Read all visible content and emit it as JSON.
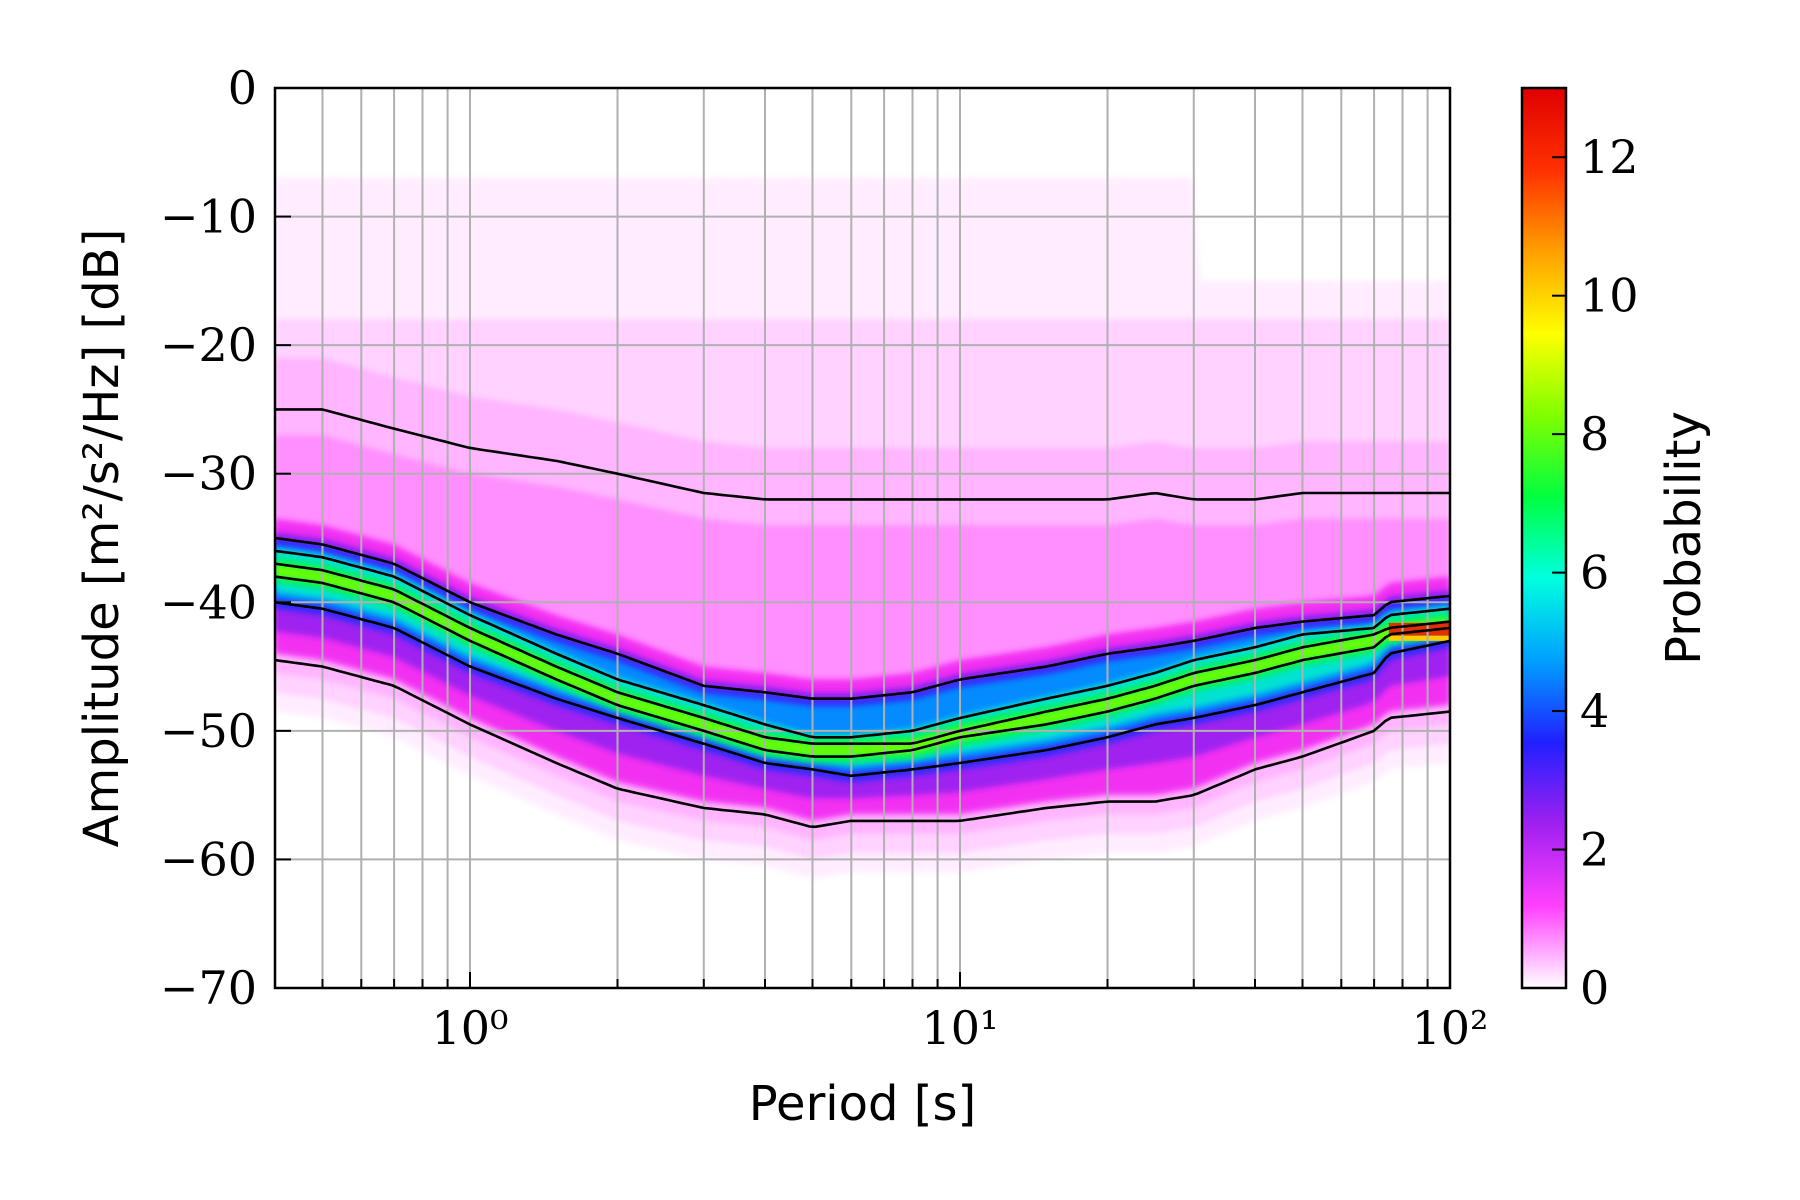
{
  "chart_data": {
    "type": "heatmap",
    "xlabel": "Period [s]",
    "ylabel": "Amplitude [m²/s²/Hz] [dB]",
    "colorbar_label": "Probability",
    "x_scale": "log",
    "xlim": [
      0.4,
      100
    ],
    "ylim": [
      -70,
      0
    ],
    "colorbar_range": [
      0,
      13
    ],
    "x_ticks": [
      {
        "value": 1,
        "label": "10⁰"
      },
      {
        "value": 10,
        "label": "10¹"
      },
      {
        "value": 100,
        "label": "10²"
      }
    ],
    "y_ticks": [
      {
        "value": 0,
        "label": "0"
      },
      {
        "value": -10,
        "label": "−10"
      },
      {
        "value": -20,
        "label": "−20"
      },
      {
        "value": -30,
        "label": "−30"
      },
      {
        "value": -40,
        "label": "−40"
      },
      {
        "value": -50,
        "label": "−50"
      },
      {
        "value": -60,
        "label": "−60"
      },
      {
        "value": -70,
        "label": "−70"
      }
    ],
    "colorbar_ticks": [
      {
        "value": 0,
        "label": "0"
      },
      {
        "value": 2,
        "label": "2"
      },
      {
        "value": 4,
        "label": "4"
      },
      {
        "value": 6,
        "label": "6"
      },
      {
        "value": 8,
        "label": "8"
      },
      {
        "value": 10,
        "label": "10"
      },
      {
        "value": 12,
        "label": "12"
      }
    ],
    "grid": true,
    "colormap": [
      "#ffffff",
      "#ff40ff",
      "#a020f0",
      "#2020ff",
      "#00a0ff",
      "#00ffe0",
      "#00ff40",
      "#80ff00",
      "#ffff00",
      "#ffa000",
      "#ff3000",
      "#e00000"
    ],
    "periods": [
      0.4,
      0.5,
      0.7,
      1,
      1.5,
      2,
      3,
      4,
      5,
      6,
      8,
      10,
      15,
      20,
      25,
      30,
      40,
      50,
      70,
      75,
      100
    ],
    "curves": [
      {
        "values": [
          -25,
          -25,
          -26.5,
          -28,
          -29,
          -30,
          -31.5,
          -32,
          -32,
          -32,
          -32,
          -32,
          -32,
          -32,
          -31.5,
          -32,
          -32,
          -31.5,
          -31.5,
          -31.5,
          -31.5
        ]
      },
      {
        "values": [
          -35,
          -35.5,
          -37,
          -40,
          -42.5,
          -44,
          -46.5,
          -47,
          -47.5,
          -47.5,
          -47,
          -46,
          -45,
          -44,
          -43.5,
          -43,
          -42,
          -41.5,
          -41,
          -40,
          -39.5
        ]
      },
      {
        "values": [
          -36,
          -36.5,
          -38,
          -41,
          -44,
          -46,
          -48,
          -49.5,
          -50.5,
          -50.5,
          -50,
          -49,
          -47.5,
          -46.5,
          -45.5,
          -44.5,
          -43.5,
          -42.5,
          -42,
          -41,
          -40.5
        ]
      },
      {
        "values": [
          -37,
          -37.5,
          -39,
          -42,
          -45,
          -47,
          -49,
          -50.5,
          -51,
          -51,
          -51,
          -50,
          -48.5,
          -47.5,
          -46.5,
          -45.5,
          -44.5,
          -43.5,
          -42.5,
          -42,
          -41.5
        ]
      },
      {
        "values": [
          -38,
          -38.5,
          -40,
          -43,
          -46,
          -48,
          -50,
          -51.5,
          -52,
          -52,
          -51.5,
          -50.5,
          -49.5,
          -48.5,
          -47.5,
          -46.5,
          -45.5,
          -44.5,
          -43.5,
          -42.5,
          -42
        ]
      },
      {
        "values": [
          -40,
          -40.5,
          -42,
          -45,
          -47.5,
          -49,
          -51,
          -52.5,
          -53,
          -53.5,
          -53,
          -52.5,
          -51.5,
          -50.5,
          -49.5,
          -49,
          -48,
          -47,
          -45.5,
          -44,
          -43
        ]
      },
      {
        "values": [
          -44.5,
          -45,
          -46.5,
          -49.5,
          -52.5,
          -54.5,
          -56,
          -56.5,
          -57.5,
          -57,
          -57,
          -57,
          -56,
          -55.5,
          -55.5,
          -55,
          -53,
          -52,
          -50,
          -49,
          -48.5
        ]
      }
    ]
  }
}
